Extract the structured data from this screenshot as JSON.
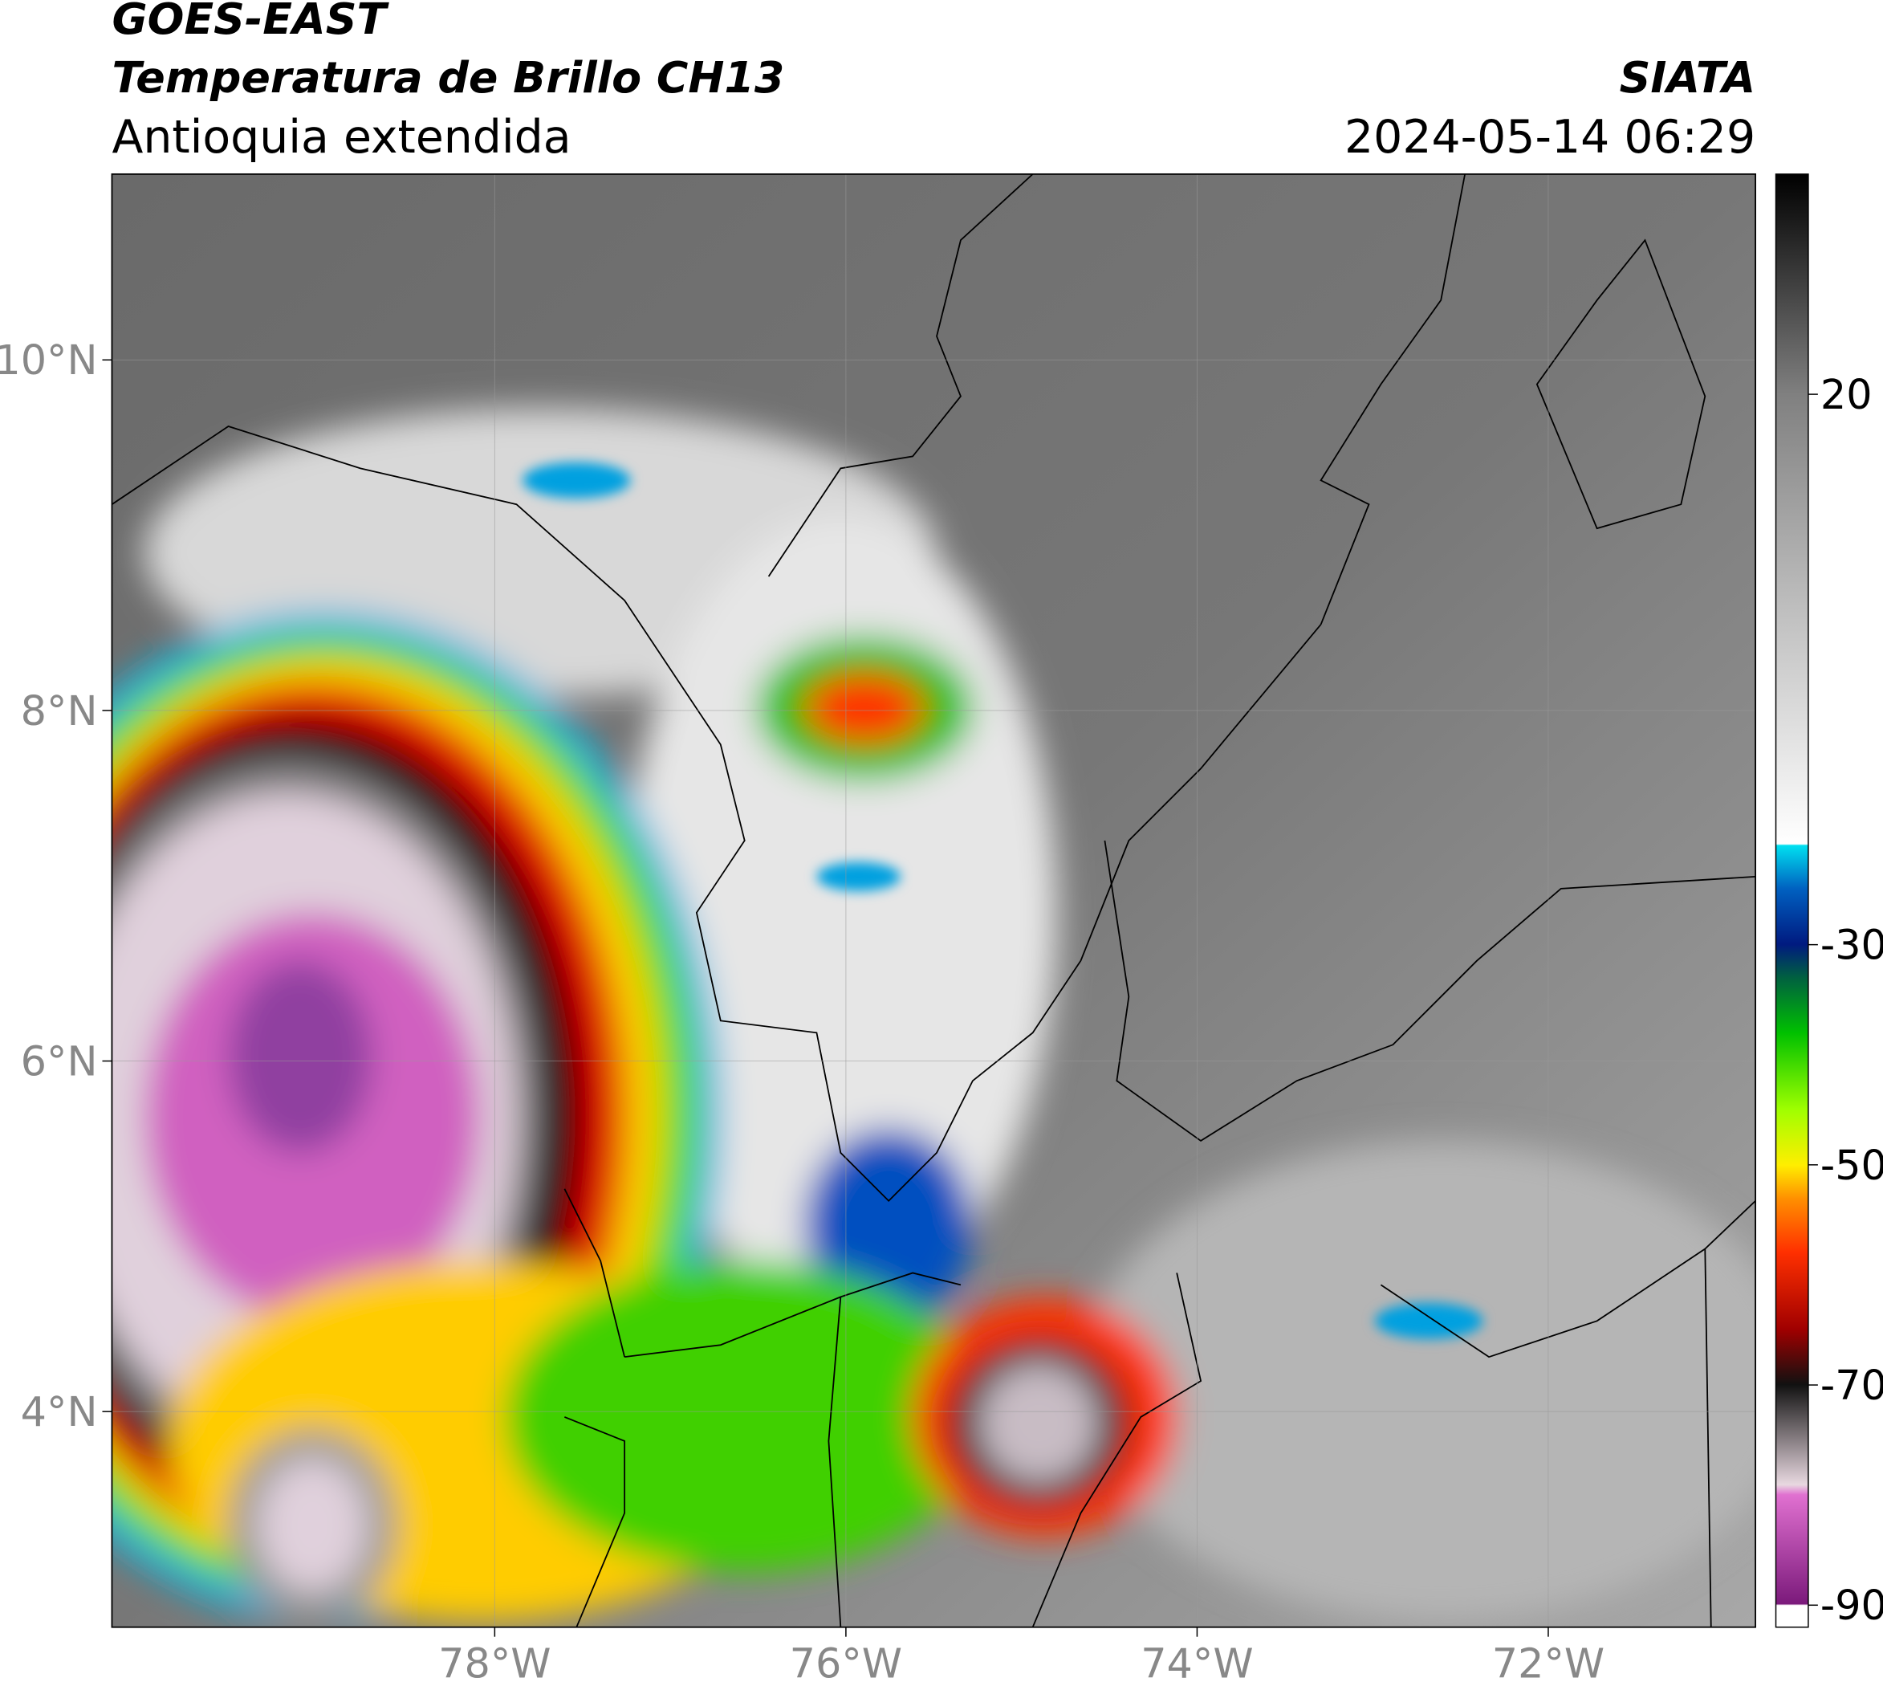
{
  "header": {
    "title": "GOES-EAST",
    "subtitle": "Temperatura de Brillo CH13",
    "region": "Antioquia extendida",
    "source": "SIATA",
    "datetime": "2024-05-14 06:29"
  },
  "map": {
    "xlim": [
      -80.18,
      -70.82
    ],
    "ylim": [
      2.77,
      11.06
    ],
    "xticks": [
      {
        "value": -78,
        "label": "78°W"
      },
      {
        "value": -76,
        "label": "76°W"
      },
      {
        "value": -74,
        "label": "74°W"
      },
      {
        "value": -72,
        "label": "72°W"
      }
    ],
    "yticks": [
      {
        "value": 4,
        "label": "4°N"
      },
      {
        "value": 6,
        "label": "6°N"
      },
      {
        "value": 8,
        "label": "8°N"
      },
      {
        "value": 10,
        "label": "10°N"
      }
    ],
    "grid": true
  },
  "colorbar": {
    "lim": [
      -92,
      40
    ],
    "ticks": [
      20,
      -30,
      -50,
      -70,
      -90
    ]
  }
}
